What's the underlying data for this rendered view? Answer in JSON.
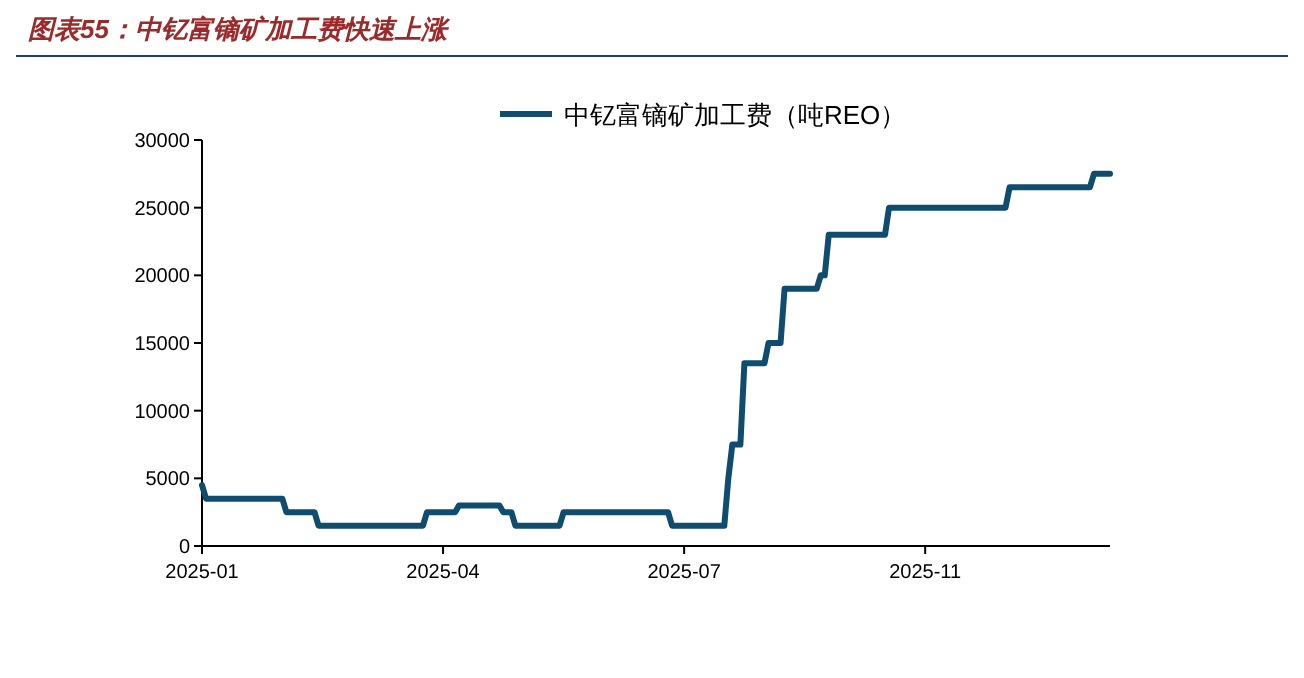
{
  "chart_data": {
    "type": "line",
    "title": "图表55：中钇富镝矿加工费快速上涨",
    "categories": [
      "2025-01",
      null,
      null,
      null,
      null,
      null,
      null,
      null,
      null,
      null,
      null,
      null,
      null,
      null,
      null,
      null,
      null,
      null,
      null,
      null,
      null,
      null,
      null,
      null,
      null,
      null,
      null,
      null,
      null,
      null,
      null,
      null,
      null,
      null,
      null,
      null,
      null,
      null,
      null,
      null,
      null,
      null,
      null,
      null,
      null,
      null,
      null,
      null,
      null,
      null,
      null,
      null,
      null,
      null,
      null,
      null,
      null,
      null,
      null,
      null,
      "2025-04",
      null,
      null,
      null,
      null,
      null,
      null,
      null,
      null,
      null,
      null,
      null,
      null,
      null,
      null,
      null,
      null,
      null,
      null,
      null,
      null,
      null,
      null,
      null,
      null,
      null,
      null,
      null,
      null,
      null,
      null,
      null,
      null,
      null,
      null,
      null,
      null,
      null,
      null,
      null,
      null,
      null,
      null,
      null,
      null,
      null,
      null,
      null,
      null,
      null,
      null,
      null,
      null,
      null,
      null,
      null,
      null,
      null,
      null,
      null,
      "2025-07",
      null,
      null,
      null,
      null,
      null,
      null,
      null,
      null,
      null,
      null,
      null,
      null,
      null,
      null,
      null,
      null,
      null,
      null,
      null,
      null,
      null,
      null,
      null,
      null,
      null,
      null,
      null,
      null,
      null,
      null,
      null,
      null,
      null,
      null,
      null,
      null,
      null,
      null,
      null,
      null,
      null,
      null,
      null,
      null,
      null,
      null,
      null,
      null,
      null,
      null,
      null,
      null,
      null,
      null,
      null,
      null,
      null,
      null,
      null,
      "2025-11",
      null,
      null,
      null,
      null,
      null,
      null,
      null,
      null,
      null,
      null,
      null,
      null,
      null,
      null,
      null,
      null,
      null,
      null,
      null,
      null,
      null,
      null,
      null,
      null,
      null,
      null,
      null,
      null,
      null,
      null,
      null,
      null,
      null,
      null,
      null,
      null,
      null,
      null,
      null,
      null,
      null,
      null,
      null,
      null,
      null,
      null
    ],
    "series": [
      {
        "name": "中钇富镝矿加工费（吨REO）",
        "color": "#0f4c6e",
        "values": [
          4500,
          3500,
          3500,
          3500,
          3500,
          3500,
          3500,
          3500,
          3500,
          3500,
          3500,
          3500,
          3500,
          3500,
          3500,
          3500,
          3500,
          3500,
          3500,
          3500,
          3500,
          2500,
          2500,
          2500,
          2500,
          2500,
          2500,
          2500,
          2500,
          1500,
          1500,
          1500,
          1500,
          1500,
          1500,
          1500,
          1500,
          1500,
          1500,
          1500,
          1500,
          1500,
          1500,
          1500,
          1500,
          1500,
          1500,
          1500,
          1500,
          1500,
          1500,
          1500,
          1500,
          1500,
          1500,
          1500,
          2500,
          2500,
          2500,
          2500,
          2500,
          2500,
          2500,
          2500,
          3000,
          3000,
          3000,
          3000,
          3000,
          3000,
          3000,
          3000,
          3000,
          3000,
          3000,
          2500,
          2500,
          2500,
          1500,
          1500,
          1500,
          1500,
          1500,
          1500,
          1500,
          1500,
          1500,
          1500,
          1500,
          1500,
          2500,
          2500,
          2500,
          2500,
          2500,
          2500,
          2500,
          2500,
          2500,
          2500,
          2500,
          2500,
          2500,
          2500,
          2500,
          2500,
          2500,
          2500,
          2500,
          2500,
          2500,
          2500,
          2500,
          2500,
          2500,
          2500,
          2500,
          1500,
          1500,
          1500,
          1500,
          1500,
          1500,
          1500,
          1500,
          1500,
          1500,
          1500,
          1500,
          1500,
          1500,
          5000,
          7500,
          7500,
          7500,
          13500,
          13500,
          13500,
          13500,
          13500,
          13500,
          15000,
          15000,
          15000,
          15000,
          19000,
          19000,
          19000,
          19000,
          19000,
          19000,
          19000,
          19000,
          19000,
          20000,
          20000,
          23000,
          23000,
          23000,
          23000,
          23000,
          23000,
          23000,
          23000,
          23000,
          23000,
          23000,
          23000,
          23000,
          23000,
          23000,
          25000,
          25000,
          25000,
          25000,
          25000,
          25000,
          25000,
          25000,
          25000,
          25000,
          25000,
          25000,
          25000,
          25000,
          25000,
          25000,
          25000,
          25000,
          25000,
          25000,
          25000,
          25000,
          25000,
          25000,
          25000,
          25000,
          25000,
          25000,
          25000,
          25000,
          26500,
          26500,
          26500,
          26500,
          26500,
          26500,
          26500,
          26500,
          26500,
          26500,
          26500,
          26500,
          26500,
          26500,
          26500,
          26500,
          26500,
          26500,
          26500,
          26500,
          26500,
          27500,
          27500,
          27500,
          27500,
          27500
        ]
      }
    ],
    "ylim": [
      0,
      30000
    ],
    "yticks": [
      0,
      5000,
      10000,
      15000,
      20000,
      25000,
      30000
    ],
    "legend": "top",
    "grid": false,
    "marker": "none",
    "line_style": "solid"
  }
}
